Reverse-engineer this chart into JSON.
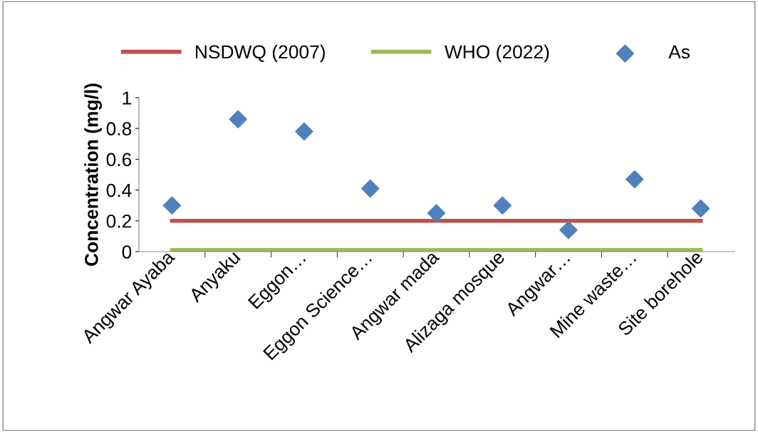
{
  "chart_data": {
    "type": "scatter",
    "ylabel": "Concentration (mg/l)",
    "categories": [
      "Angwar Ayaba",
      "Anyaku",
      "Eggon…",
      "Eggon Science…",
      "Angwar mada",
      "Alizaga mosque",
      "Angwar…",
      "Mine waste…",
      "Site borehole"
    ],
    "series": [
      {
        "name": "NSDWQ (2007)",
        "type": "line",
        "color": "#c0504d",
        "values": [
          0.2,
          0.2,
          0.2,
          0.2,
          0.2,
          0.2,
          0.2,
          0.2,
          0.2
        ]
      },
      {
        "name": "WHO (2022)",
        "type": "line",
        "color": "#9bbb59",
        "values": [
          0.01,
          0.01,
          0.01,
          0.01,
          0.01,
          0.01,
          0.01,
          0.01,
          0.01
        ]
      },
      {
        "name": "As",
        "type": "scatter",
        "color": "#4f81bd",
        "marker": "diamond",
        "values": [
          0.3,
          0.86,
          0.78,
          0.41,
          0.25,
          0.3,
          0.14,
          0.47,
          0.28
        ]
      }
    ],
    "ylim": [
      0,
      1
    ],
    "yticks": [
      0,
      0.2,
      0.4,
      0.6,
      0.8,
      1
    ],
    "grid": false,
    "legend": "top"
  }
}
